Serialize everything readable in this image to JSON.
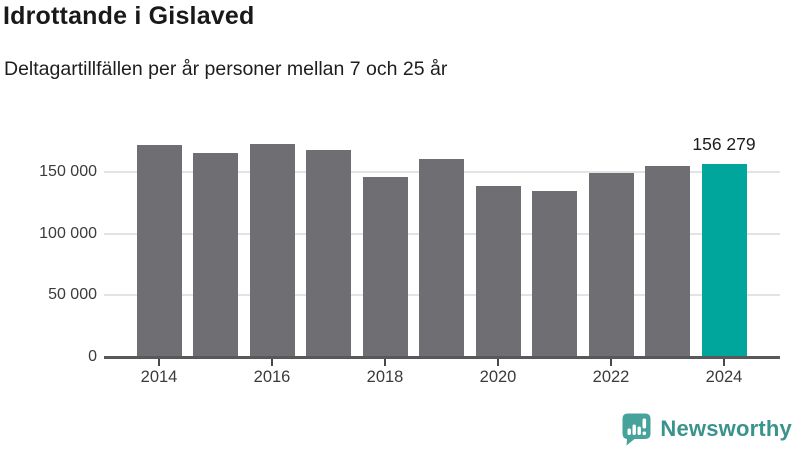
{
  "header": {
    "title": "Idrottande i Gislaved",
    "subtitle": "Deltagartillfällen per år personer mellan 7 och 25 år"
  },
  "chart_data": {
    "type": "bar",
    "categories": [
      2014,
      2015,
      2016,
      2017,
      2018,
      2019,
      2020,
      2021,
      2022,
      2023,
      2024
    ],
    "values": [
      171500,
      165500,
      172500,
      167700,
      146000,
      160500,
      139000,
      135000,
      148800,
      154500,
      156279
    ],
    "title": "Idrottande i Gislaved",
    "subtitle": "Deltagartillfällen per år personer mellan 7 och 25 år",
    "xlabel": "",
    "ylabel": "",
    "ylim": [
      0,
      175000
    ],
    "grid": true,
    "legend": false,
    "y_ticks": [
      {
        "value": 0,
        "label": "0"
      },
      {
        "value": 50000,
        "label": "50 000"
      },
      {
        "value": 100000,
        "label": "100 000"
      },
      {
        "value": 150000,
        "label": "150 000"
      }
    ],
    "x_tick_years": [
      2014,
      2016,
      2018,
      2020,
      2022,
      2024
    ],
    "highlight_index": 10,
    "annotation": {
      "text": "156 279",
      "index": 10
    },
    "colors": {
      "bar": "#6e6e73",
      "highlight": "#00a59b",
      "grid": "#e3e3e3",
      "axis": "#58585b",
      "tick": "#48484a"
    }
  },
  "footer": {
    "brand": "Newsworthy",
    "logo_color": "#46a29a",
    "text_color": "#3a938c"
  }
}
